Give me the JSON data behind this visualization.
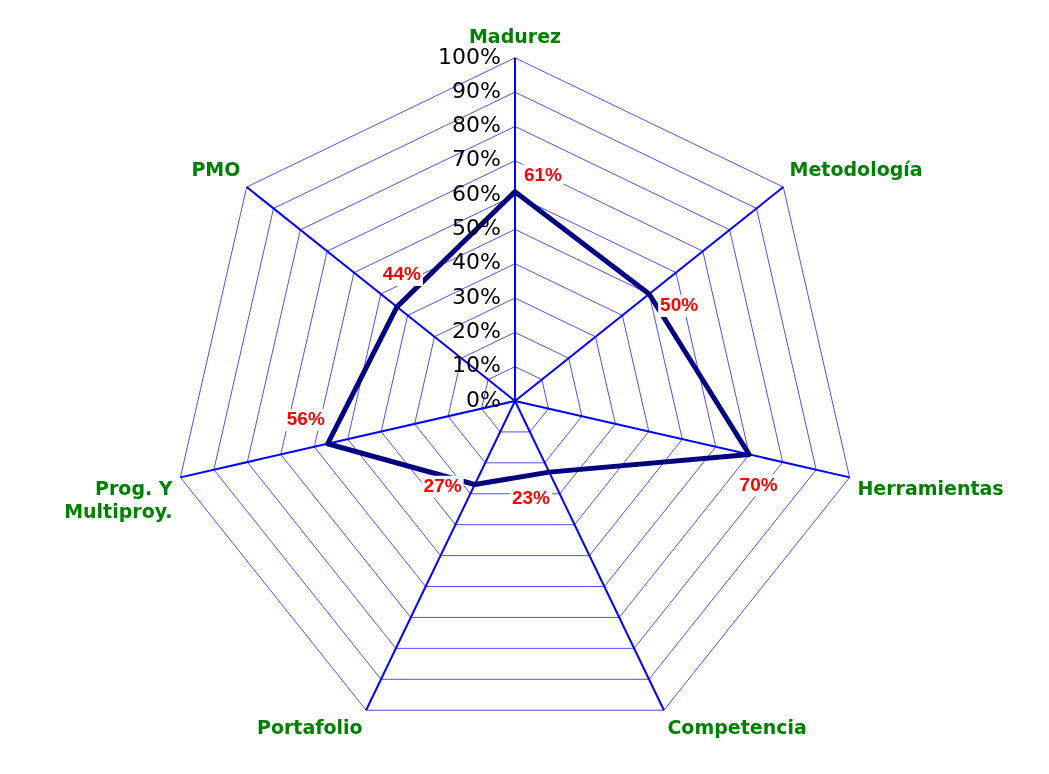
{
  "chart_data": {
    "type": "radar",
    "categories": [
      "Madurez",
      "Metodología",
      "Herramientas",
      "Competencia",
      "Portafolio",
      "Prog. Y\nMultiproy.",
      "PMO"
    ],
    "series": [
      {
        "color": "#000080",
        "values": [
          61,
          50,
          70,
          23,
          27,
          56,
          44
        ],
        "value_labels": [
          "61%",
          "50%",
          "70%",
          "23%",
          "27%",
          "56%",
          "44%"
        ]
      }
    ],
    "ylim": [
      0,
      100
    ],
    "yticks": [
      {
        "value": 0,
        "label": "0%"
      },
      {
        "value": 10,
        "label": "10%"
      },
      {
        "value": 20,
        "label": "20%"
      },
      {
        "value": 30,
        "label": "30%"
      },
      {
        "value": 40,
        "label": "40%"
      },
      {
        "value": 50,
        "label": "50%"
      },
      {
        "value": 60,
        "label": "60%"
      },
      {
        "value": 70,
        "label": "70%"
      },
      {
        "value": 80,
        "label": "80%"
      },
      {
        "value": 90,
        "label": "90%"
      },
      {
        "value": 100,
        "label": "100%"
      }
    ],
    "grid": true,
    "legend": false,
    "marker": "none",
    "line_style": "solid"
  }
}
